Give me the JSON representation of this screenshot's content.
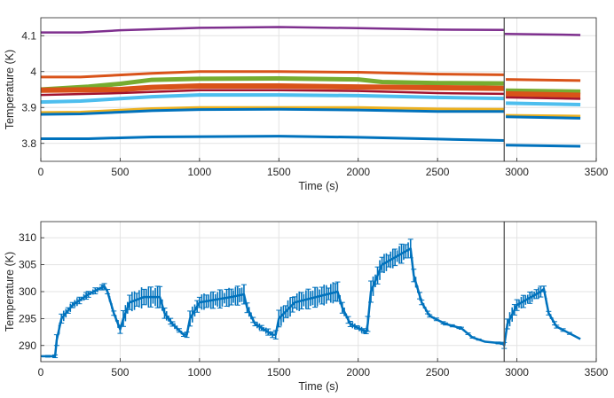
{
  "chart_data": [
    {
      "type": "line",
      "title": "",
      "xlabel": "Time (s)",
      "ylabel": "Temperature (K)",
      "xlim": [
        0,
        3500
      ],
      "ylim": [
        3.75,
        4.15
      ],
      "xticks": [
        0,
        500,
        1000,
        1500,
        2000,
        2500,
        3000,
        3500
      ],
      "yticks": [
        3.8,
        3.9,
        4,
        4.1
      ],
      "ytick_labels": [
        "3.8",
        "3.9",
        "4",
        "4.1"
      ],
      "grid": true,
      "vline_x": 2920,
      "series": [
        {
          "name": "series-purple",
          "color": "#7E2F8E",
          "width": 2.5,
          "segments": [
            [
              [
                0,
                4.109
              ],
              [
                250,
                4.109
              ],
              [
                500,
                4.115
              ],
              [
                1000,
                4.122
              ],
              [
                1500,
                4.124
              ],
              [
                2000,
                4.121
              ],
              [
                2500,
                4.117
              ],
              [
                2920,
                4.116
              ]
            ],
            [
              [
                2920,
                4.105
              ],
              [
                3400,
                4.102
              ]
            ]
          ]
        },
        {
          "name": "series-orange-1",
          "color": "#D95319",
          "width": 3,
          "segments": [
            [
              [
                0,
                3.985
              ],
              [
                250,
                3.985
              ],
              [
                700,
                3.995
              ],
              [
                1000,
                4.0
              ],
              [
                1500,
                4.0
              ],
              [
                2000,
                3.998
              ],
              [
                2500,
                3.993
              ],
              [
                2920,
                3.991
              ]
            ],
            [
              [
                2930,
                3.978
              ],
              [
                3400,
                3.975
              ]
            ]
          ]
        },
        {
          "name": "series-green",
          "color": "#77AC30",
          "width": 5,
          "segments": [
            [
              [
                0,
                3.95
              ],
              [
                300,
                3.958
              ],
              [
                500,
                3.966
              ],
              [
                700,
                3.977
              ],
              [
                1000,
                3.98
              ],
              [
                1500,
                3.981
              ],
              [
                2000,
                3.978
              ],
              [
                2150,
                3.971
              ],
              [
                2500,
                3.968
              ],
              [
                2920,
                3.967
              ]
            ],
            [
              [
                2930,
                3.947
              ],
              [
                3400,
                3.944
              ]
            ]
          ]
        },
        {
          "name": "series-orange-2",
          "color": "#D95319",
          "width": 6,
          "segments": [
            [
              [
                0,
                3.948
              ],
              [
                500,
                3.95
              ],
              [
                700,
                3.956
              ],
              [
                1000,
                3.96
              ],
              [
                1500,
                3.96
              ],
              [
                2000,
                3.957
              ],
              [
                2500,
                3.955
              ],
              [
                2920,
                3.953
              ]
            ],
            [
              [
                2930,
                3.938
              ],
              [
                3400,
                3.934
              ]
            ]
          ]
        },
        {
          "name": "series-dark-red",
          "color": "#A2142F",
          "width": 2.5,
          "segments": [
            [
              [
                0,
                3.935
              ],
              [
                500,
                3.94
              ],
              [
                1000,
                3.948
              ],
              [
                1500,
                3.948
              ],
              [
                2000,
                3.946
              ],
              [
                2500,
                3.94
              ],
              [
                2920,
                3.938
              ]
            ],
            [
              [
                2930,
                3.928
              ],
              [
                3400,
                3.924
              ]
            ]
          ]
        },
        {
          "name": "series-light-blue",
          "color": "#4DBEEE",
          "width": 4,
          "segments": [
            [
              [
                0,
                3.915
              ],
              [
                250,
                3.918
              ],
              [
                700,
                3.93
              ],
              [
                1000,
                3.935
              ],
              [
                1500,
                3.935
              ],
              [
                2000,
                3.933
              ],
              [
                2500,
                3.928
              ],
              [
                2920,
                3.925
              ]
            ],
            [
              [
                2930,
                3.912
              ],
              [
                3400,
                3.908
              ]
            ]
          ]
        },
        {
          "name": "series-yellow",
          "color": "#EDB120",
          "width": 3,
          "segments": [
            [
              [
                0,
                3.886
              ],
              [
                250,
                3.887
              ],
              [
                700,
                3.897
              ],
              [
                1000,
                3.9
              ],
              [
                1500,
                3.9
              ],
              [
                2000,
                3.9
              ],
              [
                2500,
                3.896
              ],
              [
                2920,
                3.895
              ]
            ],
            [
              [
                2930,
                3.878
              ],
              [
                3400,
                3.876
              ]
            ]
          ]
        },
        {
          "name": "series-blue-1",
          "color": "#0072BD",
          "width": 3,
          "segments": [
            [
              [
                0,
                3.881
              ],
              [
                250,
                3.882
              ],
              [
                700,
                3.891
              ],
              [
                1000,
                3.894
              ],
              [
                1500,
                3.895
              ],
              [
                2000,
                3.893
              ],
              [
                2500,
                3.889
              ],
              [
                2920,
                3.889
              ]
            ],
            [
              [
                2930,
                3.874
              ],
              [
                3400,
                3.87
              ]
            ]
          ]
        },
        {
          "name": "series-blue-2",
          "color": "#0072BD",
          "width": 3,
          "segments": [
            [
              [
                0,
                3.813
              ],
              [
                300,
                3.813
              ],
              [
                700,
                3.818
              ],
              [
                1500,
                3.82
              ],
              [
                2000,
                3.817
              ],
              [
                2500,
                3.812
              ],
              [
                2920,
                3.808
              ]
            ],
            [
              [
                2930,
                3.795
              ],
              [
                3400,
                3.792
              ]
            ]
          ]
        }
      ]
    },
    {
      "type": "line",
      "title": "",
      "xlabel": "Time (s)",
      "ylabel": "Temperature (K)",
      "xlim": [
        0,
        3500
      ],
      "ylim": [
        287,
        313
      ],
      "xticks": [
        0,
        500,
        1000,
        1500,
        2000,
        2500,
        3000,
        3500
      ],
      "yticks": [
        290,
        295,
        300,
        305,
        310
      ],
      "ytick_labels": [
        "290",
        "295",
        "300",
        "305",
        "310"
      ],
      "grid": true,
      "vline_x": 2920,
      "error_bars": true,
      "series": [
        {
          "name": "series-blue",
          "color": "#0072BD",
          "points": [
            [
              0,
              288,
              0.1
            ],
            [
              90,
              288,
              0.3
            ],
            [
              100,
              291,
              1
            ],
            [
              130,
              295,
              1
            ],
            [
              200,
              297.5,
              0.8
            ],
            [
              300,
              299.5,
              0.6
            ],
            [
              400,
              301,
              0.5
            ],
            [
              420,
              300,
              0.5
            ],
            [
              460,
              296,
              0.6
            ],
            [
              500,
              293,
              0.8
            ],
            [
              520,
              295,
              1.5
            ],
            [
              560,
              298,
              1.8
            ],
            [
              650,
              299,
              2
            ],
            [
              750,
              299,
              2
            ],
            [
              780,
              296,
              1
            ],
            [
              830,
              294,
              0.6
            ],
            [
              900,
              292,
              0.4
            ],
            [
              920,
              292,
              0.5
            ],
            [
              940,
              295,
              1.5
            ],
            [
              1000,
              298,
              1.5
            ],
            [
              1200,
              299,
              1.8
            ],
            [
              1280,
              299.5,
              1.8
            ],
            [
              1300,
              297,
              1
            ],
            [
              1350,
              294,
              0.6
            ],
            [
              1460,
              292,
              0.6
            ],
            [
              1480,
              292,
              0.8
            ],
            [
              1500,
              295,
              1.8
            ],
            [
              1600,
              298,
              1.8
            ],
            [
              1870,
              300,
              2
            ],
            [
              1900,
              297,
              1
            ],
            [
              1950,
              294,
              0.6
            ],
            [
              2050,
              292.5,
              0.5
            ],
            [
              2060,
              294,
              1.5
            ],
            [
              2080,
              300,
              2
            ],
            [
              2150,
              305,
              1.8
            ],
            [
              2300,
              307.5,
              1.8
            ],
            [
              2330,
              308,
              1.8
            ],
            [
              2350,
              303,
              1.2
            ],
            [
              2400,
              298,
              0.6
            ],
            [
              2450,
              295.5,
              0.3
            ],
            [
              2550,
              294,
              0.2
            ],
            [
              2650,
              293.2,
              0.2
            ],
            [
              2720,
              291.5,
              0.2
            ],
            [
              2800,
              290.7,
              0.1
            ],
            [
              2910,
              290.4,
              0.2
            ],
            [
              2920,
              290,
              0.6
            ],
            [
              2940,
              294,
              1.5
            ],
            [
              3000,
              297.5,
              1.2
            ],
            [
              3150,
              300,
              1
            ],
            [
              3170,
              300.5,
              0.6
            ],
            [
              3200,
              296,
              0.6
            ],
            [
              3250,
              293.5,
              0.3
            ],
            [
              3400,
              291.2,
              0.1
            ]
          ]
        }
      ]
    }
  ]
}
